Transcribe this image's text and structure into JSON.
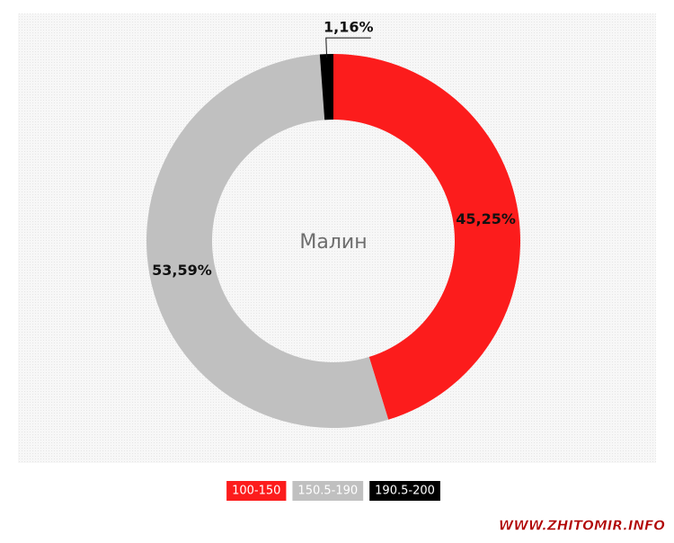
{
  "chart_data": {
    "type": "pie",
    "center_label": "Малин",
    "categories": [
      "100-150",
      "150.5-190",
      "190.5-200"
    ],
    "values": [
      45.25,
      53.59,
      1.16
    ],
    "value_labels": [
      "45,25%",
      "53,59%",
      "1,16%"
    ],
    "colors": [
      "#fc1c1c",
      "#c0c0c0",
      "#000000"
    ],
    "legend": "bottom"
  },
  "watermark": "WWW.ZHITOMIR.INFO"
}
